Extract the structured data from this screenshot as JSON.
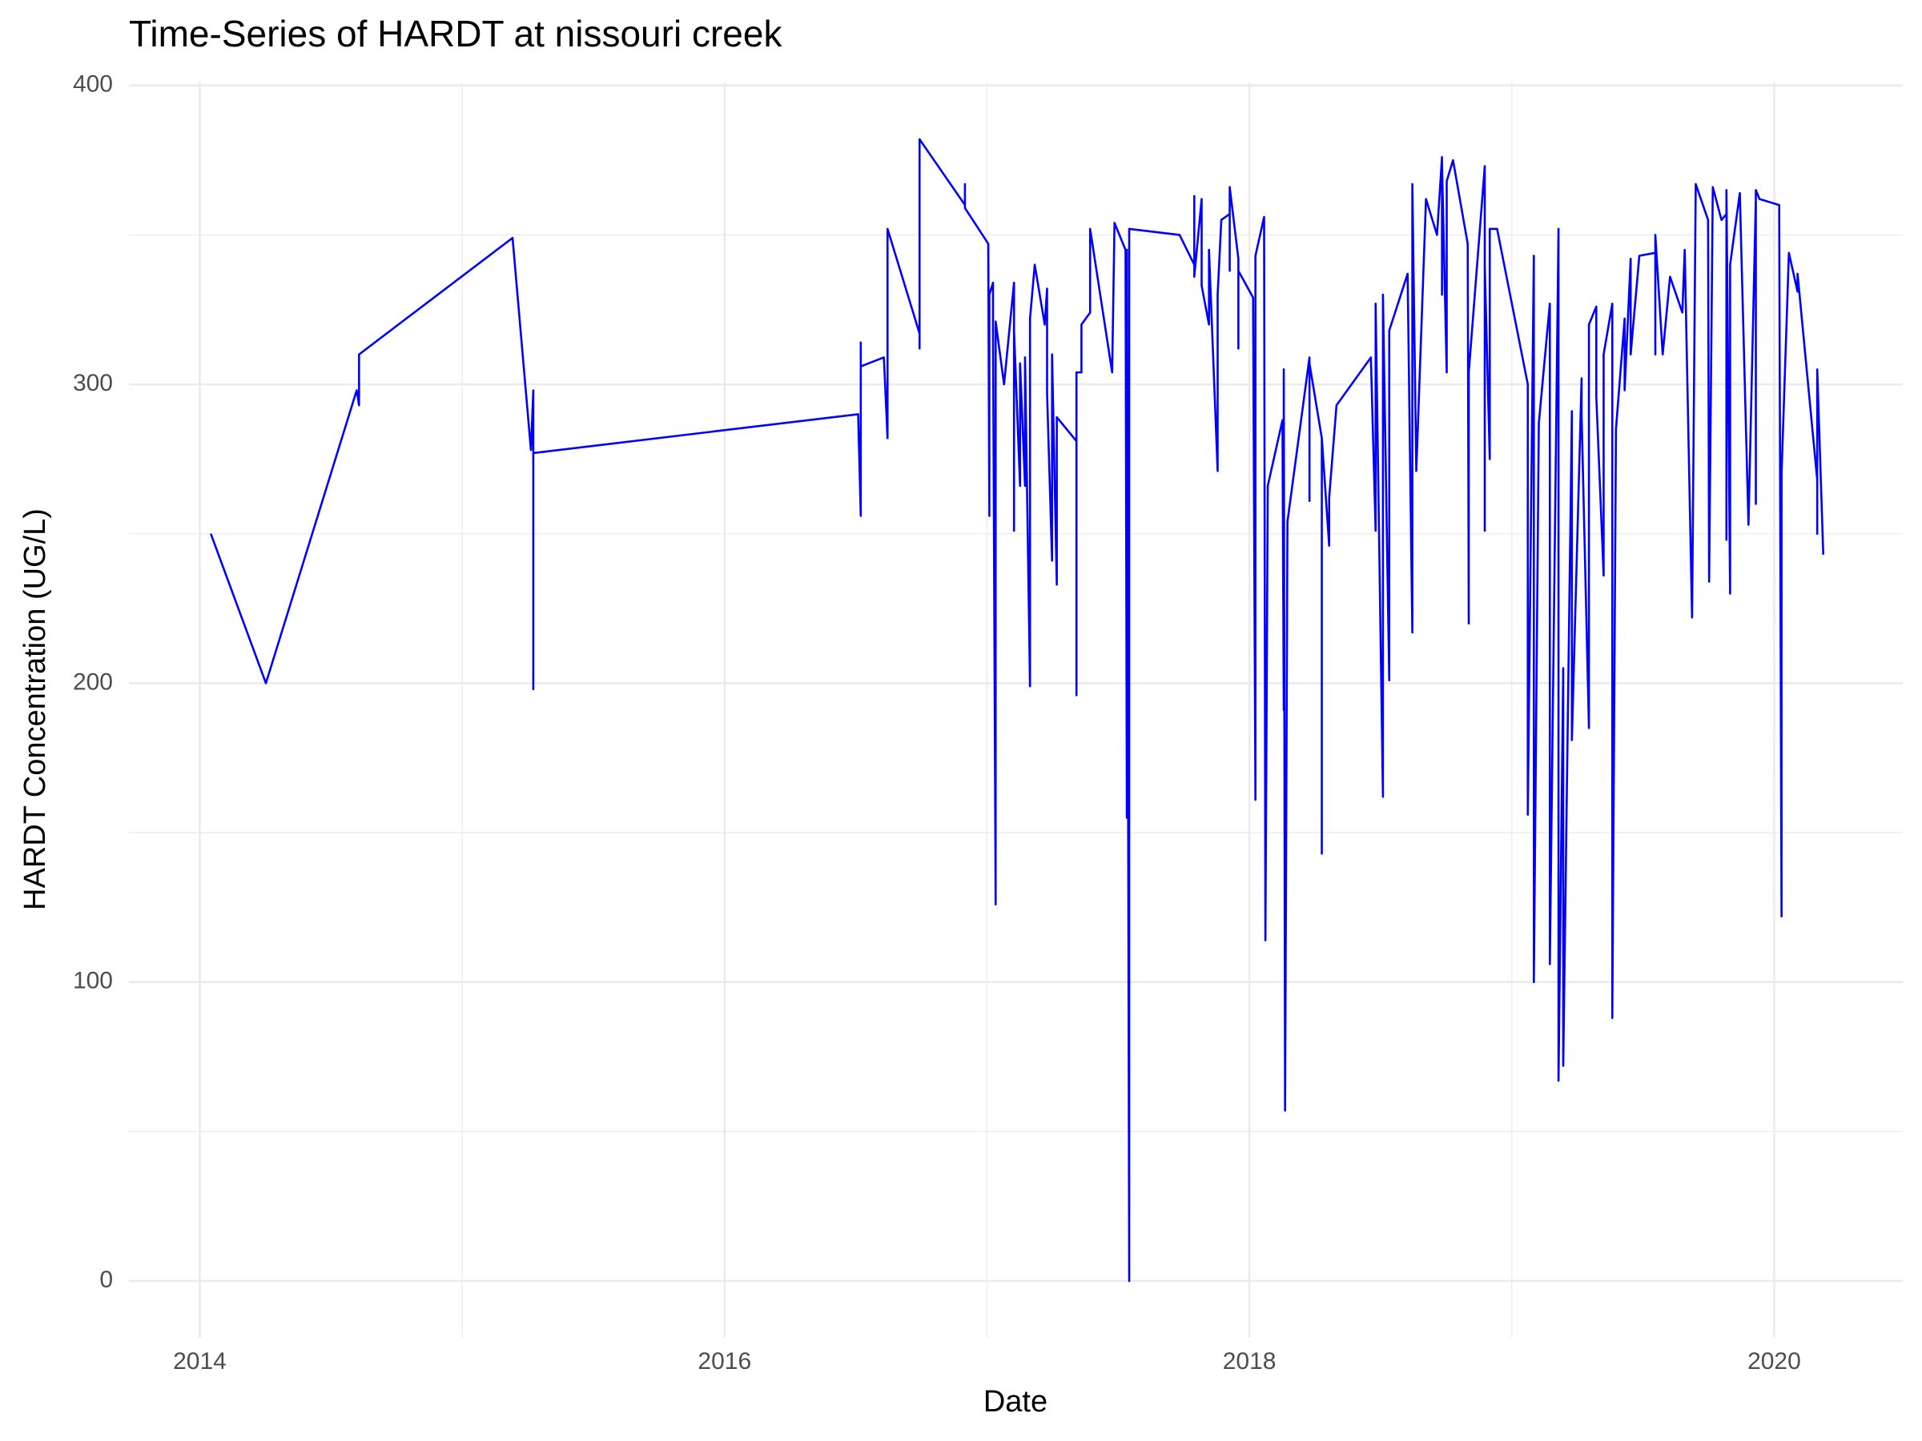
{
  "chart_data": {
    "type": "line",
    "title": "Time-Series of HARDT at nissouri creek",
    "x_label": "Date",
    "y_label": "HARDT Concentration (UG/L)",
    "color": "#0000ff",
    "grid": true,
    "x": [
      2014.042,
      2014.252,
      2014.598,
      2014.607,
      2014.607,
      2015.192,
      2015.262,
      2015.271,
      2015.271,
      2015.271,
      2016.509,
      2016.519,
      2016.519,
      2016.519,
      2016.607,
      2016.621,
      2016.621,
      2016.743,
      2016.743,
      2016.743,
      2016.743,
      2016.743,
      2016.916,
      2016.916,
      2016.916,
      2017.005,
      2017.009,
      2017.009,
      2017.023,
      2017.023,
      2017.033,
      2017.033,
      2017.065,
      2017.103,
      2017.103,
      2017.103,
      2017.126,
      2017.126,
      2017.145,
      2017.145,
      2017.164,
      2017.164,
      2017.182,
      2017.22,
      2017.229,
      2017.229,
      2017.248,
      2017.248,
      2017.266,
      2017.266,
      2017.341,
      2017.341,
      2017.341,
      2017.36,
      2017.36,
      2017.393,
      2017.393,
      2017.477,
      2017.486,
      2017.528,
      2017.533,
      2017.533,
      2017.542,
      2017.542,
      2017.734,
      2017.79,
      2017.79,
      2017.79,
      2017.818,
      2017.818,
      2017.846,
      2017.846,
      2017.879,
      2017.879,
      2017.893,
      2017.925,
      2017.925,
      2017.925,
      2017.958,
      2017.958,
      2017.958,
      2018.014,
      2018.023,
      2018.023,
      2018.056,
      2018.061,
      2018.07,
      2018.126,
      2018.131,
      2018.131,
      2018.136,
      2018.145,
      2018.229,
      2018.229,
      2018.229,
      2018.276,
      2018.276,
      2018.276,
      2018.304,
      2018.304,
      2018.332,
      2018.463,
      2018.481,
      2018.481,
      2018.509,
      2018.509,
      2018.533,
      2018.533,
      2018.603,
      2018.621,
      2018.621,
      2018.636,
      2018.673,
      2018.715,
      2018.734,
      2018.734,
      2018.734,
      2018.752,
      2018.752,
      2018.776,
      2018.832,
      2018.836,
      2018.836,
      2018.897,
      2018.897,
      2018.897,
      2018.916,
      2018.916,
      2018.944,
      2019.061,
      2019.061,
      2019.084,
      2019.084,
      2019.103,
      2019.145,
      2019.145,
      2019.178,
      2019.178,
      2019.196,
      2019.196,
      2019.229,
      2019.229,
      2019.266,
      2019.266,
      2019.294,
      2019.294,
      2019.322,
      2019.322,
      2019.35,
      2019.35,
      2019.383,
      2019.383,
      2019.397,
      2019.43,
      2019.43,
      2019.453,
      2019.453,
      2019.486,
      2019.547,
      2019.547,
      2019.547,
      2019.575,
      2019.603,
      2019.65,
      2019.659,
      2019.687,
      2019.701,
      2019.748,
      2019.752,
      2019.766,
      2019.799,
      2019.818,
      2019.818,
      2019.818,
      2019.832,
      2019.832,
      2019.869,
      2019.902,
      2019.93,
      2019.93,
      2019.93,
      2019.944,
      2020.019,
      2020.028,
      2020.028,
      2020.056,
      2020.089,
      2020.089,
      2020.164,
      2020.164,
      2020.164,
      2020.187
    ],
    "values": [
      250,
      200,
      298,
      293,
      310,
      349,
      278,
      298,
      198,
      277,
      290,
      256,
      314,
      306,
      309,
      282,
      352,
      317,
      312,
      375,
      370,
      382,
      360,
      367,
      359,
      347,
      256,
      330,
      334,
      318,
      126,
      321,
      300,
      334,
      251,
      318,
      266,
      307,
      266,
      309,
      199,
      322,
      340,
      320,
      332,
      297,
      241,
      310,
      233,
      289,
      281,
      196,
      304,
      304,
      320,
      324,
      352,
      304,
      354,
      345,
      155,
      345,
      0,
      352,
      350,
      340,
      363,
      336,
      362,
      333,
      320,
      345,
      271,
      330,
      355,
      357,
      338,
      366,
      342,
      312,
      338,
      329,
      161,
      343,
      356,
      114,
      266,
      288,
      191,
      305,
      57,
      254,
      309,
      261,
      307,
      282,
      143,
      282,
      246,
      262,
      293,
      309,
      251,
      327,
      162,
      330,
      201,
      318,
      337,
      217,
      367,
      271,
      362,
      350,
      376,
      330,
      374,
      304,
      368,
      375,
      347,
      220,
      304,
      373,
      251,
      340,
      275,
      352,
      352,
      300,
      156,
      343,
      100,
      287,
      327,
      106,
      352,
      67,
      205,
      72,
      291,
      181,
      302,
      290,
      185,
      320,
      326,
      296,
      236,
      310,
      327,
      88,
      285,
      322,
      298,
      342,
      310,
      343,
      344,
      310,
      350,
      310,
      336,
      324,
      345,
      222,
      367,
      355,
      234,
      366,
      355,
      357,
      248,
      365,
      230,
      340,
      364,
      253,
      362,
      260,
      365,
      362,
      360,
      122,
      270,
      344,
      331,
      337,
      268,
      250,
      305,
      243
    ],
    "xlim": [
      2013.73,
      2020.49
    ],
    "ylim": [
      -19,
      401
    ],
    "xticks": [
      2014,
      2016,
      2018,
      2020
    ],
    "yticks": [
      0,
      100,
      200,
      300,
      400
    ],
    "xminor": [
      2015,
      2017,
      2019
    ],
    "yminor": [
      50,
      150,
      250,
      350
    ]
  }
}
